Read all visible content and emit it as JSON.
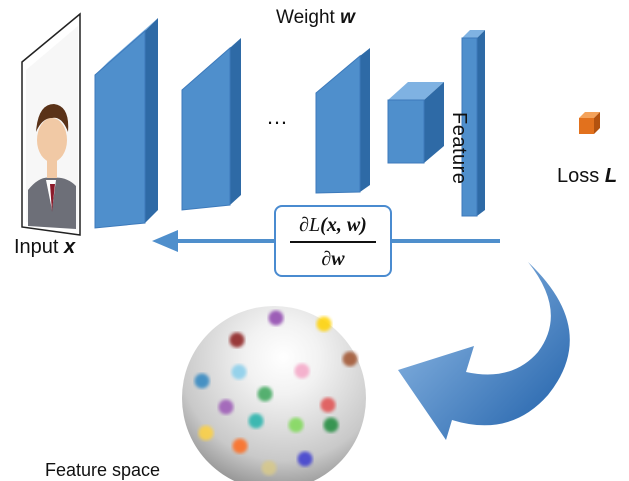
{
  "labels": {
    "weight_text": "Weight",
    "weight_symbol": "w",
    "feature": "Feature",
    "loss_text": "Loss",
    "loss_symbol": "L",
    "input_text": "Input",
    "input_symbol": "x",
    "ellipsis": "…",
    "feature_space": "Feature space"
  },
  "gradient": {
    "numerator_d": "∂",
    "numerator_L": "L",
    "numerator_args": "(x, w)",
    "denominator_d": "∂",
    "denominator_w": "w"
  },
  "colors": {
    "block_front": "#4f8fcc",
    "block_side": "#2e6aa6",
    "block_top": "#7fb2e2",
    "arrow": "#4f8fcc",
    "loss_cube": "#e2711d",
    "sphere_mid": "#d9d9d9",
    "sphere_edge": "#8a8a8a"
  },
  "feature_dots": [
    "#8e44ad",
    "#ffd200",
    "#8b1a1a",
    "#a0522d",
    "#2e86c1",
    "#87ceeb",
    "#f4a6c6",
    "#3aa55a",
    "#e05050",
    "#9b59b6",
    "#20b2aa",
    "#7ed957",
    "#ffd23f",
    "#ff6a1a",
    "#d8c98a",
    "#3a3ad0",
    "#1a8a3a"
  ]
}
